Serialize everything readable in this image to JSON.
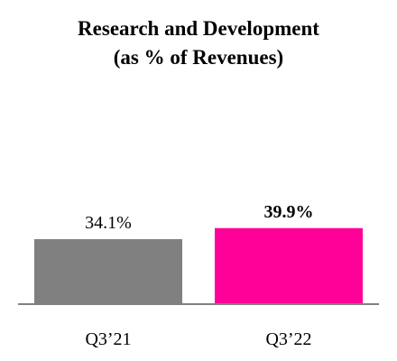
{
  "chart_data": {
    "type": "bar",
    "title": "Research and Development",
    "subtitle": "(as % of Revenues)",
    "categories": [
      "Q3’21",
      "Q3’22"
    ],
    "values": [
      34.1,
      39.9
    ],
    "data_labels": [
      "34.1%",
      "39.9%"
    ],
    "bold_labels": [
      false,
      true
    ],
    "colors": [
      "#808080",
      "#FF0099"
    ],
    "ylim": [
      0,
      45
    ],
    "grid": false,
    "axis_color": "#808080"
  }
}
